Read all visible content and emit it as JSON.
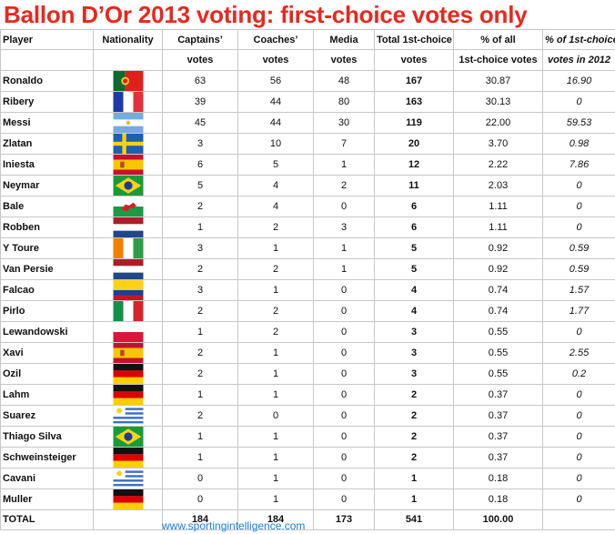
{
  "title": "Ballon D’Or 2013 voting: first-choice votes only",
  "header1": [
    "Player",
    "Nationality",
    "Captains’",
    "Coaches’",
    "Media",
    "Total 1st-choice",
    "% of all",
    "% of 1st-choice"
  ],
  "header2": [
    "",
    "",
    "votes",
    "votes",
    "votes",
    "votes",
    "1st-choice votes",
    "votes in 2012"
  ],
  "rows": [
    {
      "player": "Ronaldo",
      "flag": "portugal-flag",
      "captains": "63",
      "coaches": "56",
      "media": "48",
      "total": "167",
      "pct": "30.87",
      "pct2012": "16.90"
    },
    {
      "player": "Ribery",
      "flag": "france-flag",
      "captains": "39",
      "coaches": "44",
      "media": "80",
      "total": "163",
      "pct": "30.13",
      "pct2012": "0"
    },
    {
      "player": "Messi",
      "flag": "argentina-flag",
      "captains": "45",
      "coaches": "44",
      "media": "30",
      "total": "119",
      "pct": "22.00",
      "pct2012": "59.53"
    },
    {
      "player": "Zlatan",
      "flag": "sweden-flag",
      "captains": "3",
      "coaches": "10",
      "media": "7",
      "total": "20",
      "pct": "3.70",
      "pct2012": "0.98"
    },
    {
      "player": "Iniesta",
      "flag": "spain-flag",
      "captains": "6",
      "coaches": "5",
      "media": "1",
      "total": "12",
      "pct": "2.22",
      "pct2012": "7.86"
    },
    {
      "player": "Neymar",
      "flag": "brazil-flag",
      "captains": "5",
      "coaches": "4",
      "media": "2",
      "total": "11",
      "pct": "2.03",
      "pct2012": "0"
    },
    {
      "player": "Bale",
      "flag": "wales-flag",
      "captains": "2",
      "coaches": "4",
      "media": "0",
      "total": "6",
      "pct": "1.11",
      "pct2012": "0"
    },
    {
      "player": "Robben",
      "flag": "netherlands-flag",
      "captains": "1",
      "coaches": "2",
      "media": "3",
      "total": "6",
      "pct": "1.11",
      "pct2012": "0"
    },
    {
      "player": "Y Toure",
      "flag": "ivory-coast-flag",
      "captains": "3",
      "coaches": "1",
      "media": "1",
      "total": "5",
      "pct": "0.92",
      "pct2012": "0.59"
    },
    {
      "player": "Van Persie",
      "flag": "netherlands-flag",
      "captains": "2",
      "coaches": "2",
      "media": "1",
      "total": "5",
      "pct": "0.92",
      "pct2012": "0.59"
    },
    {
      "player": "Falcao",
      "flag": "colombia-flag",
      "captains": "3",
      "coaches": "1",
      "media": "0",
      "total": "4",
      "pct": "0.74",
      "pct2012": "1.57"
    },
    {
      "player": "Pirlo",
      "flag": "italy-flag",
      "captains": "2",
      "coaches": "2",
      "media": "0",
      "total": "4",
      "pct": "0.74",
      "pct2012": "1.77"
    },
    {
      "player": "Lewandowski",
      "flag": "poland-flag",
      "captains": "1",
      "coaches": "2",
      "media": "0",
      "total": "3",
      "pct": "0.55",
      "pct2012": "0"
    },
    {
      "player": "Xavi",
      "flag": "spain-flag",
      "captains": "2",
      "coaches": "1",
      "media": "0",
      "total": "3",
      "pct": "0.55",
      "pct2012": "2.55"
    },
    {
      "player": "Ozil",
      "flag": "germany-flag",
      "captains": "2",
      "coaches": "1",
      "media": "0",
      "total": "3",
      "pct": "0.55",
      "pct2012": "0.2"
    },
    {
      "player": "Lahm",
      "flag": "germany-flag",
      "captains": "1",
      "coaches": "1",
      "media": "0",
      "total": "2",
      "pct": "0.37",
      "pct2012": "0"
    },
    {
      "player": "Suarez",
      "flag": "uruguay-flag",
      "captains": "2",
      "coaches": "0",
      "media": "0",
      "total": "2",
      "pct": "0.37",
      "pct2012": "0"
    },
    {
      "player": "Thiago Silva",
      "flag": "brazil-flag",
      "captains": "1",
      "coaches": "1",
      "media": "0",
      "total": "2",
      "pct": "0.37",
      "pct2012": "0"
    },
    {
      "player": "Schweinsteiger",
      "flag": "germany-flag",
      "captains": "1",
      "coaches": "1",
      "media": "0",
      "total": "2",
      "pct": "0.37",
      "pct2012": "0"
    },
    {
      "player": "Cavani",
      "flag": "uruguay-flag",
      "captains": "0",
      "coaches": "1",
      "media": "0",
      "total": "1",
      "pct": "0.18",
      "pct2012": "0"
    },
    {
      "player": "Muller",
      "flag": "germany-flag",
      "captains": "0",
      "coaches": "1",
      "media": "0",
      "total": "1",
      "pct": "0.18",
      "pct2012": "0"
    }
  ],
  "total": {
    "label": "TOTAL",
    "captains": "184",
    "coaches": "184",
    "media": "173",
    "total": "541",
    "pct": "100.00"
  },
  "footer": "www.sportingintelligence.com",
  "colors": {
    "title": "#e8281e",
    "link": "#1a7fd6",
    "grid": "#c8c8c8"
  }
}
